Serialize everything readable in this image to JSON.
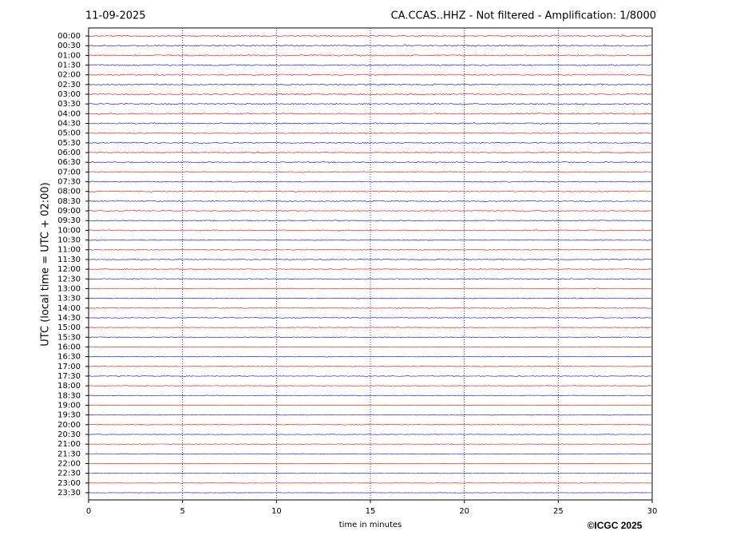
{
  "chart_data": {
    "type": "helicorder",
    "date": "11-09-2025",
    "title": "CA.CCAS..HHZ - Not filtered - Amplification: 1/8000",
    "ylabel": "UTC (local time = UTC + 02:00)",
    "xlabel": "time in minutes",
    "copyright": "©ICGC 2025",
    "categories": [
      "00:00",
      "00:30",
      "01:00",
      "01:30",
      "02:00",
      "02:30",
      "03:00",
      "03:30",
      "04:00",
      "04:30",
      "05:00",
      "05:30",
      "06:00",
      "06:30",
      "07:00",
      "07:30",
      "08:00",
      "08:30",
      "09:00",
      "09:30",
      "10:00",
      "10:30",
      "11:00",
      "11:30",
      "12:00",
      "12:30",
      "13:00",
      "13:30",
      "14:00",
      "14:30",
      "15:00",
      "15:30",
      "16:00",
      "16:30",
      "17:00",
      "17:30",
      "18:00",
      "18:30",
      "19:00",
      "19:30",
      "20:00",
      "20:30",
      "21:00",
      "21:30",
      "22:00",
      "22:30",
      "23:00",
      "23:30"
    ],
    "trace_colors": [
      "#ff0000",
      "#0000ff"
    ],
    "xlim": [
      0,
      30
    ],
    "xticks": [
      0,
      5,
      10,
      15,
      20,
      25,
      30
    ],
    "grid": true
  }
}
